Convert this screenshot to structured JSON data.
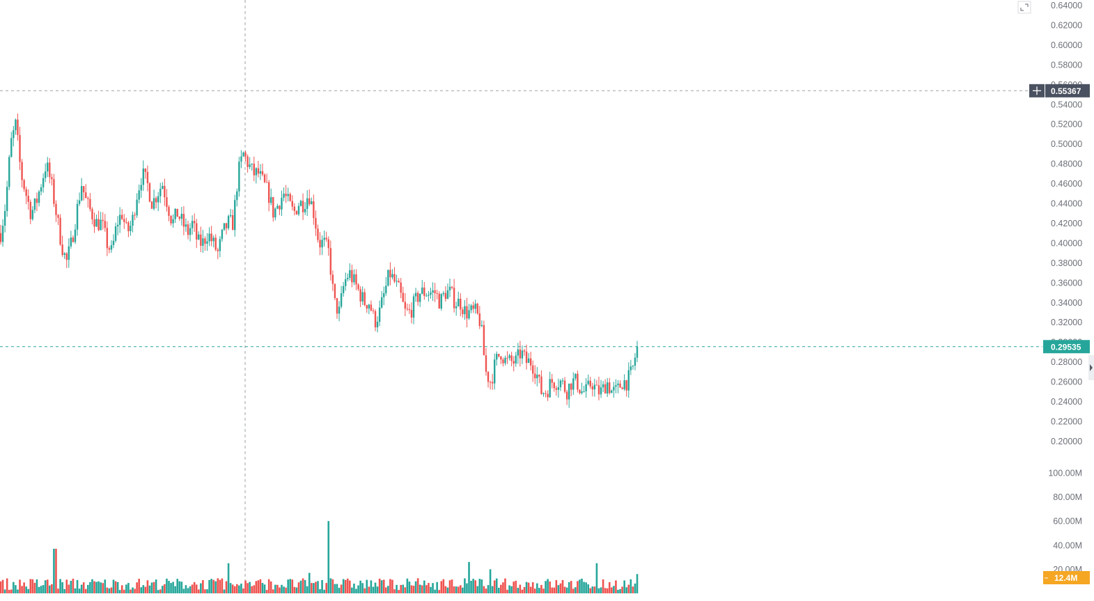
{
  "colors": {
    "up": "#26a69a",
    "down": "#ef5350",
    "last_price_tag": "#26a69a",
    "crosshair_tag": "#4a5160",
    "volume_tag": "#f5a623",
    "grid_dash": "#9aa0a6"
  },
  "icons": {
    "fullscreen": "expand-icon",
    "crosshair_plus": "plus-icon",
    "scroll_right": "chevron-right-icon"
  },
  "labels": {
    "crosshair_price": "0.55367",
    "last_price": "0.29535",
    "last_volume": "12.4M"
  },
  "chart_data": [
    {
      "type": "candlestick",
      "title": "",
      "xlabel": "",
      "ylabel": "",
      "ylim": [
        0.19,
        0.645
      ],
      "price_ticks": [
        "0.64000",
        "0.62000",
        "0.60000",
        "0.58000",
        "0.56000",
        "0.54000",
        "0.52000",
        "0.50000",
        "0.48000",
        "0.46000",
        "0.44000",
        "0.42000",
        "0.40000",
        "0.38000",
        "0.36000",
        "0.34000",
        "0.32000",
        "0.30000",
        "0.28000",
        "0.26000",
        "0.24000",
        "0.22000",
        "0.20000"
      ],
      "price_tick_values": [
        0.64,
        0.62,
        0.6,
        0.58,
        0.56,
        0.54,
        0.52,
        0.5,
        0.48,
        0.46,
        0.44,
        0.42,
        0.4,
        0.38,
        0.36,
        0.34,
        0.32,
        0.3,
        0.28,
        0.26,
        0.24,
        0.22,
        0.2
      ],
      "close_path": [
        0.41,
        0.44,
        0.5,
        0.52,
        0.47,
        0.45,
        0.43,
        0.44,
        0.46,
        0.48,
        0.46,
        0.43,
        0.4,
        0.38,
        0.4,
        0.43,
        0.46,
        0.44,
        0.43,
        0.42,
        0.42,
        0.4,
        0.39,
        0.42,
        0.43,
        0.41,
        0.42,
        0.45,
        0.47,
        0.46,
        0.44,
        0.45,
        0.46,
        0.44,
        0.42,
        0.43,
        0.42,
        0.41,
        0.42,
        0.4,
        0.4,
        0.41,
        0.4,
        0.39,
        0.41,
        0.42,
        0.42,
        0.47,
        0.49,
        0.48,
        0.47,
        0.47,
        0.46,
        0.45,
        0.43,
        0.44,
        0.45,
        0.44,
        0.43,
        0.44,
        0.44,
        0.45,
        0.43,
        0.4,
        0.4,
        0.39,
        0.34,
        0.33,
        0.36,
        0.37,
        0.36,
        0.35,
        0.34,
        0.34,
        0.32,
        0.33,
        0.35,
        0.37,
        0.36,
        0.35,
        0.33,
        0.33,
        0.34,
        0.35,
        0.35,
        0.35,
        0.35,
        0.34,
        0.35,
        0.35,
        0.34,
        0.34,
        0.33,
        0.33,
        0.33,
        0.32,
        0.27,
        0.26,
        0.28,
        0.29,
        0.28,
        0.28,
        0.28,
        0.29,
        0.28,
        0.28,
        0.27,
        0.25,
        0.25,
        0.26,
        0.26,
        0.26,
        0.25,
        0.26,
        0.26,
        0.25,
        0.25,
        0.26,
        0.25,
        0.25,
        0.26,
        0.25,
        0.25,
        0.26,
        0.26,
        0.27,
        0.29535
      ],
      "last_price": 0.29535,
      "crosshair_price": 0.55367
    },
    {
      "type": "bar",
      "title": "Volume",
      "ylim": [
        0,
        105000000
      ],
      "volume_ticks": [
        "100.00M",
        "80.00M",
        "60.00M",
        "40.00M",
        "20.00M"
      ],
      "volume_tick_values": [
        100000000,
        80000000,
        60000000,
        40000000,
        20000000
      ],
      "spikes": [
        {
          "pos": 0.085,
          "value": 37000000
        },
        {
          "pos": 0.357,
          "value": 25000000
        },
        {
          "pos": 0.485,
          "value": 17000000
        },
        {
          "pos": 0.516,
          "value": 60000000
        },
        {
          "pos": 0.735,
          "value": 26000000
        },
        {
          "pos": 0.77,
          "value": 20000000
        },
        {
          "pos": 0.937,
          "value": 25000000
        },
        {
          "pos": 1.0,
          "value": 16000000
        }
      ],
      "baseline_volume": 7000000,
      "last_volume": 12400000
    }
  ]
}
